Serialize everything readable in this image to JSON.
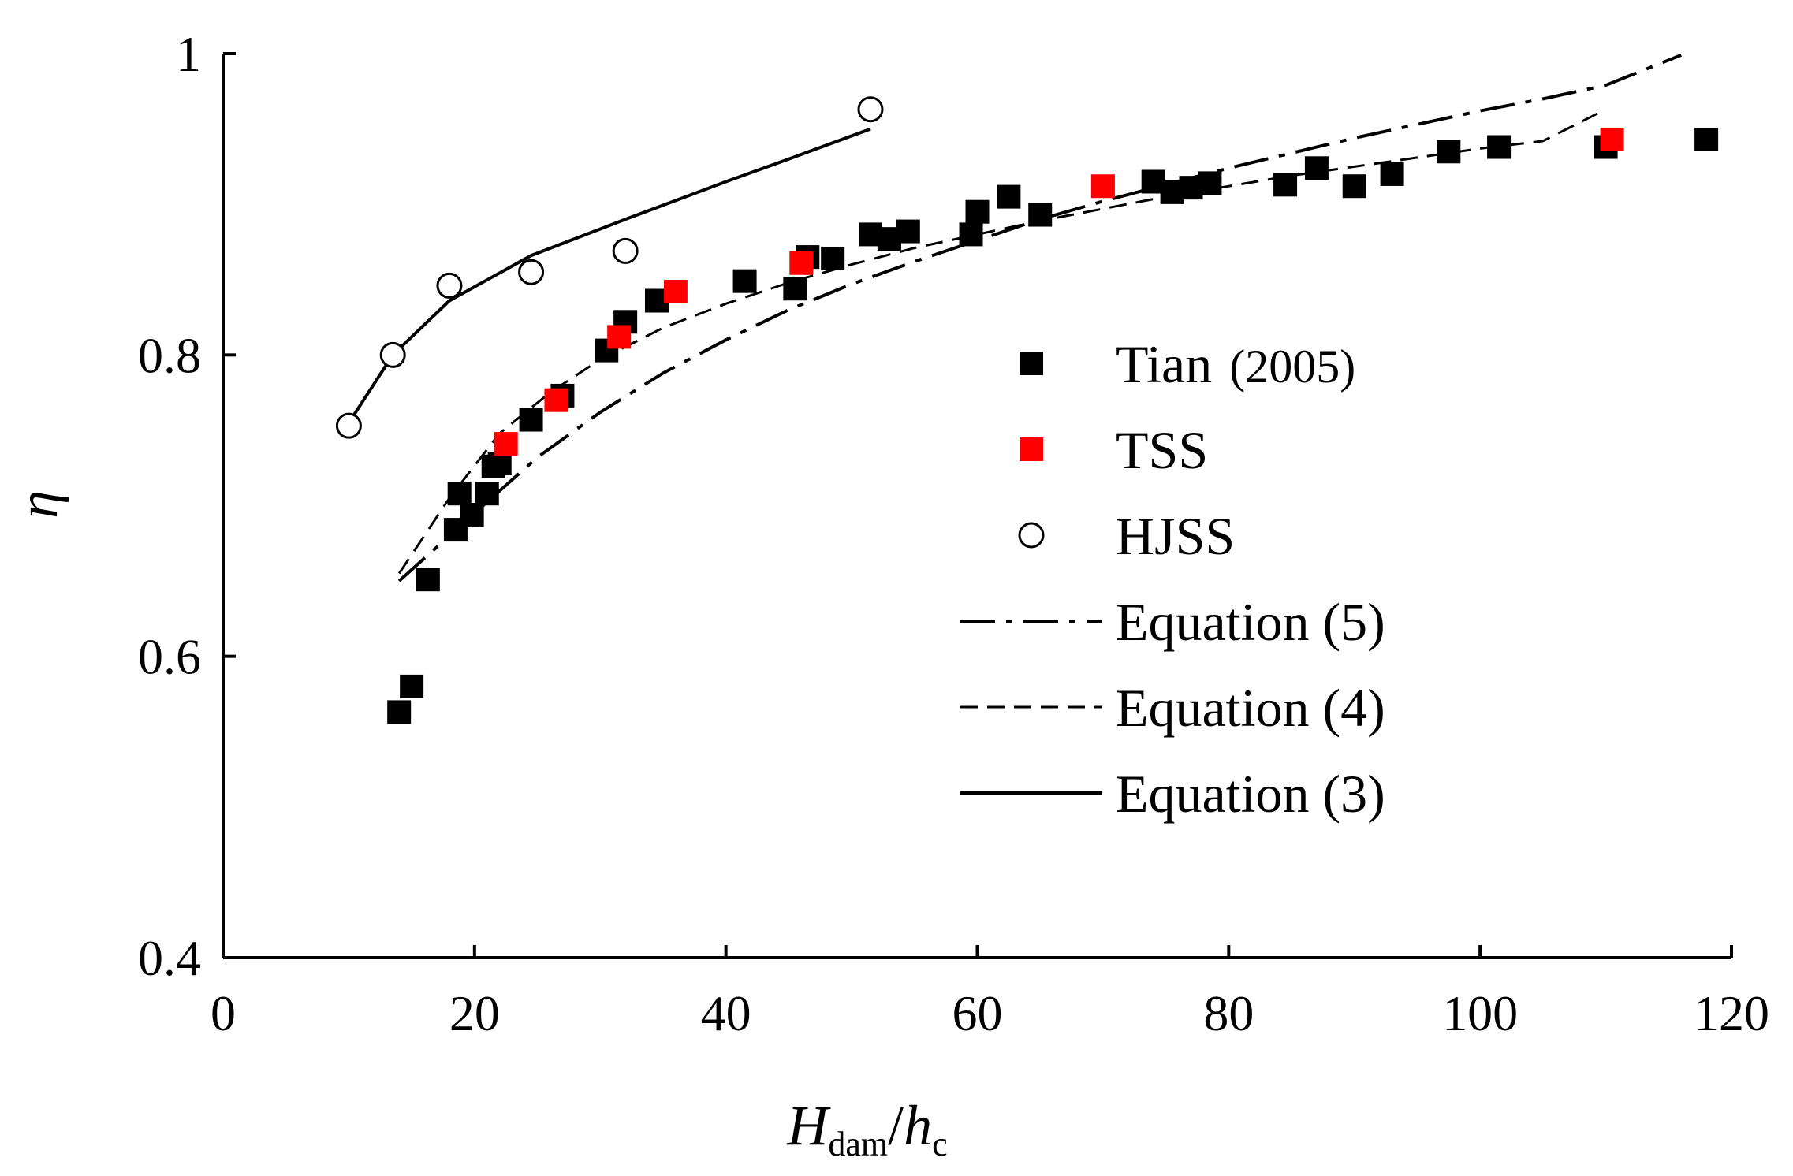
{
  "chart_data": {
    "type": "scatter",
    "title": "",
    "xlabel": {
      "main": "H",
      "main_sub": "dam",
      "sep": "/",
      "second": "h",
      "second_sub": "c"
    },
    "ylabel": "η",
    "xlim": [
      0,
      120
    ],
    "ylim": [
      0.4,
      1.0
    ],
    "x_ticks": [
      0,
      20,
      40,
      60,
      80,
      100,
      120
    ],
    "y_ticks": [
      0.4,
      0.6,
      0.8,
      1.0
    ],
    "x_tick_labels": [
      "0",
      "20",
      "40",
      "60",
      "80",
      "100",
      "120"
    ],
    "y_tick_labels": [
      "0.4",
      "0.6",
      "0.8",
      "1"
    ],
    "grid": false,
    "legend_position": "center-right",
    "series": [
      {
        "name": "Tian",
        "name_suffix": "(2005)",
        "kind": "points",
        "marker": "square",
        "color": "#000000",
        "x": [
          14,
          15,
          16.3,
          18.5,
          18.8,
          19.8,
          21,
          21.5,
          22,
          24.5,
          27,
          30.5,
          32,
          34.5,
          41.5,
          45.5,
          46.5,
          48.5,
          51.5,
          53,
          54.5,
          59.5,
          60,
          62.5,
          65,
          74,
          75.5,
          77,
          78.5,
          84.5,
          87,
          90,
          93,
          97.5,
          101.5,
          110,
          118
        ],
        "y": [
          0.563,
          0.58,
          0.651,
          0.684,
          0.708,
          0.694,
          0.708,
          0.726,
          0.728,
          0.757,
          0.773,
          0.803,
          0.822,
          0.836,
          0.849,
          0.844,
          0.865,
          0.864,
          0.88,
          0.877,
          0.882,
          0.88,
          0.895,
          0.905,
          0.893,
          0.915,
          0.908,
          0.911,
          0.914,
          0.913,
          0.924,
          0.912,
          0.92,
          0.935,
          0.938,
          0.938,
          0.943
        ]
      },
      {
        "name": "TSS",
        "kind": "points",
        "marker": "square",
        "color": "#ff0000",
        "x": [
          22.5,
          26.5,
          31.5,
          36,
          46,
          70,
          110.5
        ],
        "y": [
          0.741,
          0.77,
          0.812,
          0.842,
          0.861,
          0.912,
          0.943
        ]
      },
      {
        "name": "HJSS",
        "kind": "points",
        "marker": "circle",
        "color": "#000000",
        "x": [
          10,
          13.5,
          18,
          24.5,
          32,
          51.5
        ],
        "y": [
          0.753,
          0.8,
          0.846,
          0.855,
          0.869,
          0.963
        ]
      },
      {
        "name": "Equation (5)",
        "kind": "line",
        "dash": "dashdot",
        "color": "#000000",
        "x": [
          14,
          20,
          25,
          30,
          35,
          40,
          45,
          50,
          55,
          60,
          65,
          70,
          75,
          80,
          85,
          90,
          95,
          100,
          105,
          110,
          116
        ],
        "y": [
          0.65,
          0.695,
          0.732,
          0.762,
          0.788,
          0.81,
          0.83,
          0.847,
          0.862,
          0.876,
          0.89,
          0.902,
          0.913,
          0.924,
          0.934,
          0.944,
          0.953,
          0.962,
          0.97,
          0.979,
          0.999
        ]
      },
      {
        "name": "Equation (4)",
        "kind": "line",
        "dash": "dashed",
        "color": "#000000",
        "x": [
          14,
          18,
          22,
          26,
          30,
          35,
          40,
          45,
          50,
          55,
          60,
          65,
          70,
          75,
          80,
          85,
          90,
          95,
          100,
          105,
          110
        ],
        "y": [
          0.655,
          0.705,
          0.748,
          0.775,
          0.797,
          0.818,
          0.834,
          0.848,
          0.86,
          0.871,
          0.88,
          0.889,
          0.897,
          0.905,
          0.912,
          0.919,
          0.925,
          0.931,
          0.937,
          0.942,
          0.963
        ]
      },
      {
        "name": "Equation (3)",
        "kind": "line",
        "dash": "solid",
        "color": "#000000",
        "x": [
          10,
          13.5,
          18,
          24.5,
          32,
          40,
          45,
          51.5
        ],
        "y": [
          0.755,
          0.8,
          0.836,
          0.866,
          0.89,
          0.915,
          0.93,
          0.95
        ]
      }
    ]
  }
}
